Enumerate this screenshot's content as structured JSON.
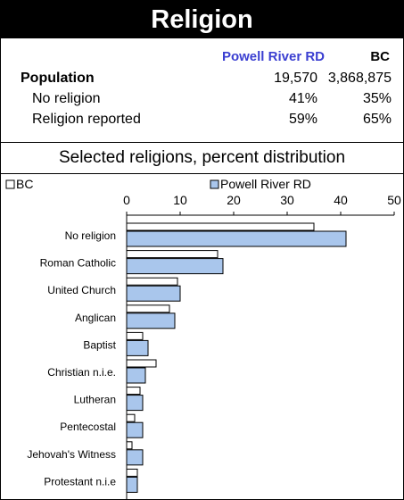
{
  "title": "Religion",
  "summary": {
    "col_a": "Powell River RD",
    "col_b": "BC",
    "rows": [
      {
        "label": "Population",
        "a": "19,570",
        "b": "3,868,875"
      },
      {
        "label": "No religion",
        "a": "41%",
        "b": "35%"
      },
      {
        "label": "Religion reported",
        "a": "59%",
        "b": "65%"
      }
    ]
  },
  "chart_data": {
    "type": "bar",
    "title": "Selected religions, percent distribution",
    "orientation": "horizontal",
    "categories": [
      "No religion",
      "Roman Catholic",
      "United Church",
      "Anglican",
      "Baptist",
      "Christian n.i.e.",
      "Lutheran",
      "Pentecostal",
      "Jehovah's Witness",
      "Protestant n.i.e"
    ],
    "series": [
      {
        "name": "BC",
        "values": [
          35,
          17,
          9.5,
          8,
          3,
          5.5,
          2.5,
          1.5,
          1,
          2
        ]
      },
      {
        "name": "Powell River RD",
        "values": [
          41,
          18,
          10,
          9,
          4,
          3.5,
          3,
          3,
          3,
          2
        ]
      }
    ],
    "xlim": [
      0,
      50
    ],
    "xticks": [
      0,
      10,
      20,
      30,
      40,
      50
    ],
    "legend_position": "top",
    "colors": {
      "BC": "#ffffff",
      "Powell River RD": "#a9c6ec",
      "stroke": "#000000"
    }
  }
}
